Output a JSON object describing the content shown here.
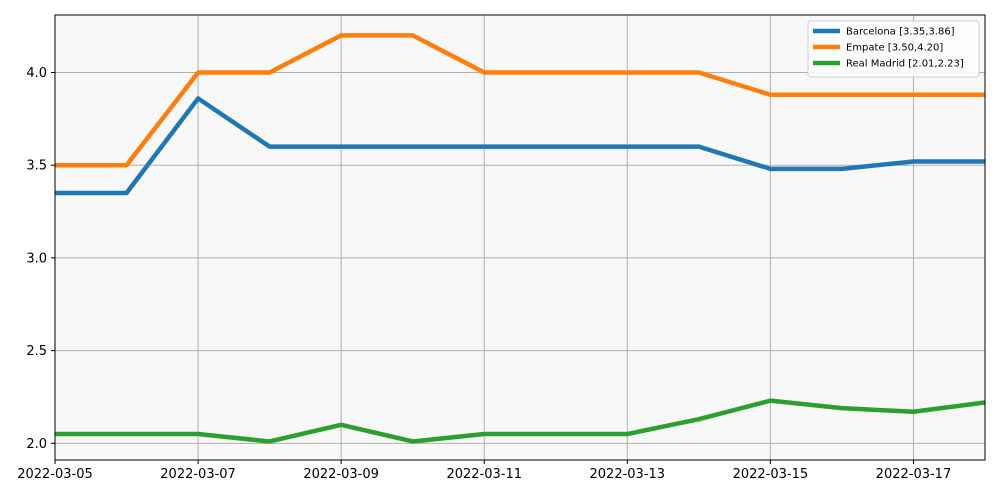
{
  "chart_data": {
    "type": "line",
    "title": "",
    "xlabel": "",
    "ylabel": "",
    "x": [
      "2022-03-05",
      "2022-03-06",
      "2022-03-07",
      "2022-03-08",
      "2022-03-09",
      "2022-03-10",
      "2022-03-11",
      "2022-03-12",
      "2022-03-13",
      "2022-03-14",
      "2022-03-15",
      "2022-03-16",
      "2022-03-17",
      "2022-03-18"
    ],
    "x_ticks": [
      "2022-03-05",
      "2022-03-07",
      "2022-03-09",
      "2022-03-11",
      "2022-03-13",
      "2022-03-15",
      "2022-03-17"
    ],
    "y_ticks": [
      "2.0",
      "2.5",
      "3.0",
      "3.5",
      "4.0"
    ],
    "xlim": [
      "2022-03-05",
      "2022-03-18"
    ],
    "ylim": [
      1.91,
      4.31
    ],
    "grid": true,
    "legend_position": "top-right",
    "series": [
      {
        "name": "Barcelona [3.35,3.86]",
        "color": "#1f77b4",
        "values": [
          3.35,
          3.35,
          3.86,
          3.6,
          3.6,
          3.6,
          3.6,
          3.6,
          3.6,
          3.6,
          3.48,
          3.48,
          3.52,
          3.52
        ]
      },
      {
        "name": "Empate [3.50,4.20]",
        "color": "#ff7f0e",
        "values": [
          3.5,
          3.5,
          4.0,
          4.0,
          4.2,
          4.2,
          4.0,
          4.0,
          4.0,
          4.0,
          3.88,
          3.88,
          3.88,
          3.88
        ]
      },
      {
        "name": "Real Madrid [2.01,2.23]",
        "color": "#2ca02c",
        "values": [
          2.05,
          2.05,
          2.05,
          2.01,
          2.1,
          2.01,
          2.05,
          2.05,
          2.05,
          2.13,
          2.23,
          2.19,
          2.17,
          2.22
        ]
      }
    ],
    "colors": {
      "plot_background": "#f8f8f8",
      "grid": "#b0b0b0"
    }
  }
}
